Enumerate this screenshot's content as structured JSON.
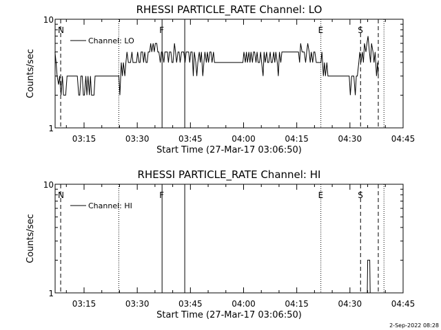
{
  "footer_date": "2-Sep-2022 08:28",
  "chart_data": [
    {
      "type": "line",
      "title": "RHESSI PARTICLE_RATE Channel: LO",
      "xlabel": "Start Time (27-Mar-17 03:06:50)",
      "ylabel": "Counts/sec",
      "y_scale": "log",
      "ylim": [
        1,
        10
      ],
      "y_ticks": [
        {
          "label": "10",
          "value": 10
        },
        {
          "label": "1",
          "value": 1
        }
      ],
      "xlim_min": [
        6.833,
        105.0
      ],
      "x_ticks": [
        {
          "label": "03:15",
          "min": 15
        },
        {
          "label": "03:30",
          "min": 30
        },
        {
          "label": "03:45",
          "min": 45
        },
        {
          "label": "04:00",
          "min": 60
        },
        {
          "label": "04:15",
          "min": 75
        },
        {
          "label": "04:30",
          "min": 90
        },
        {
          "label": "04:45",
          "min": 105
        }
      ],
      "legend": {
        "label": "Channel: LO",
        "position": "top-left"
      },
      "markers": [
        {
          "min": 8.4,
          "style": "dashed",
          "label": "N"
        },
        {
          "min": 24.8,
          "style": "dotted",
          "label": ""
        },
        {
          "min": 37.0,
          "style": "solid",
          "label": "F"
        },
        {
          "min": 43.4,
          "style": "solid",
          "label": ""
        },
        {
          "min": 81.8,
          "style": "dotted",
          "label": "E"
        },
        {
          "min": 93.0,
          "style": "dashed",
          "label": "S"
        },
        {
          "min": 98.0,
          "style": "dashed",
          "label": ""
        },
        {
          "min": 99.6,
          "style": "dotted",
          "label": ""
        }
      ],
      "series": [
        {
          "x": [
            6.8,
            7.1,
            7.4,
            7.8,
            8.1,
            8.5,
            8.9,
            9.2,
            9.5,
            9.8,
            10.2,
            10.5,
            10.8,
            11.1,
            11.5,
            11.8,
            12.1,
            12.5,
            12.8,
            13.1,
            13.5,
            13.8,
            14.1,
            14.5,
            14.8,
            15.1,
            15.5,
            15.8,
            16.1,
            16.5,
            16.8,
            17.1,
            17.5,
            17.8,
            18.1,
            18.5,
            18.8,
            19.1,
            19.5,
            19.8,
            20.1,
            20.5,
            20.8,
            21.1,
            21.5,
            21.8,
            22.1,
            22.5,
            22.8,
            23.1,
            23.5,
            23.8,
            24.1,
            24.5,
            24.8,
            25.1,
            25.5,
            25.8,
            26.1,
            26.5,
            26.8,
            27.1,
            27.5,
            27.8,
            28.1,
            28.5,
            28.8,
            29.1,
            29.5,
            29.8,
            30.1,
            30.5,
            30.8,
            31.1,
            31.5,
            31.8,
            32.1,
            32.5,
            32.8,
            33.1,
            33.5,
            33.8,
            34.1,
            34.5,
            34.8,
            35.1,
            35.5,
            35.8,
            36.1,
            36.5,
            36.8,
            37.1,
            37.5,
            37.8,
            38.1,
            38.5,
            38.8,
            39.1,
            39.5,
            39.8,
            40.1,
            40.5,
            40.8,
            41.1,
            41.5,
            41.8,
            42.1,
            42.5,
            42.8,
            43.1,
            43.5,
            43.8,
            44.1,
            44.5,
            44.8,
            45.1,
            45.5,
            45.8,
            46.1,
            46.5,
            46.8,
            47.1,
            47.5,
            47.8,
            48.1,
            48.5,
            48.8,
            49.1,
            49.5,
            49.8,
            50.1,
            50.5,
            50.8,
            51.1,
            51.5,
            51.8,
            52.1,
            52.5,
            52.8,
            53.1,
            53.5,
            53.8,
            54.1,
            54.5,
            54.8,
            55.1,
            55.5,
            55.8,
            56.1,
            56.5,
            56.8,
            57.1,
            57.5,
            57.8,
            58.1,
            58.5,
            58.8,
            59.1,
            59.5,
            59.8,
            60.1,
            60.5,
            60.8,
            61.1,
            61.5,
            61.8,
            62.1,
            62.5,
            62.8,
            63.1,
            63.5,
            63.8,
            64.1,
            64.5,
            64.8,
            65.1,
            65.5,
            65.8,
            66.1,
            66.5,
            66.8,
            67.1,
            67.5,
            67.8,
            68.1,
            68.5,
            68.8,
            69.1,
            69.5,
            69.8,
            70.1,
            70.5,
            70.8,
            71.1,
            71.5,
            71.8,
            72.1,
            72.5,
            72.8,
            73.1,
            73.5,
            73.8,
            74.1,
            74.5,
            74.8,
            75.1,
            75.5,
            75.8,
            76.1,
            76.5,
            76.8,
            77.1,
            77.5,
            77.8,
            78.1,
            78.5,
            78.8,
            79.1,
            79.5,
            79.8,
            80.1,
            80.5,
            80.8,
            81.1,
            81.5,
            81.8,
            82.1,
            82.5,
            82.8,
            83.1,
            83.5,
            83.8,
            84.1,
            84.5,
            84.8,
            85.1,
            85.5,
            85.8,
            86.1,
            86.5,
            86.8,
            87.1,
            87.5,
            87.8,
            88.1,
            88.5,
            88.8,
            89.1,
            89.5,
            89.8,
            90.1,
            90.5,
            90.8,
            91.1,
            91.5,
            91.8,
            92.1,
            92.5,
            92.8,
            93.1,
            93.5,
            93.8,
            94.1,
            94.5,
            94.8,
            95.1,
            95.5,
            95.8,
            96.1,
            96.5,
            96.8,
            97.1,
            97.5,
            97.8,
            98.0
          ],
          "y": [
            5,
            4,
            3,
            2.5,
            3,
            2,
            3,
            2,
            2,
            2,
            3,
            3,
            3,
            3,
            3,
            3,
            3,
            3,
            3,
            3,
            2,
            2,
            3,
            3,
            2,
            2,
            3,
            2,
            3,
            2,
            3,
            2,
            2,
            2,
            3,
            3,
            3,
            3,
            3,
            3,
            3,
            3,
            3,
            3,
            3,
            3,
            3,
            3,
            3,
            3,
            3,
            3,
            3,
            3,
            3,
            2,
            4,
            3,
            4,
            3,
            4,
            5,
            4,
            4,
            4,
            5,
            4,
            4,
            4,
            4,
            5,
            4,
            4,
            5,
            5,
            4,
            5,
            4,
            4,
            5,
            5,
            6,
            5,
            6,
            5,
            6,
            6,
            5,
            5,
            4,
            5,
            5,
            4,
            5,
            5,
            5,
            4,
            5,
            5,
            4,
            4,
            6,
            5,
            4,
            5,
            5,
            4,
            5,
            5,
            5,
            4,
            5,
            5,
            5,
            4,
            5,
            5,
            3,
            5,
            4,
            3,
            4,
            5,
            4,
            5,
            3,
            4,
            5,
            4,
            5,
            4,
            5,
            5,
            4,
            5,
            4,
            4,
            4,
            4,
            4,
            4,
            4,
            4,
            4,
            4,
            4,
            4,
            4,
            4,
            4,
            4,
            4,
            4,
            4,
            4,
            4,
            4,
            4,
            4,
            4,
            5,
            4,
            5,
            4,
            5,
            4,
            5,
            4,
            5,
            5,
            4,
            5,
            4,
            4,
            5,
            4,
            3,
            5,
            4,
            5,
            4,
            4,
            5,
            4,
            4,
            5,
            4,
            5,
            4,
            3,
            5,
            4,
            5,
            5,
            5,
            5,
            5,
            5,
            5,
            5,
            5,
            5,
            5,
            5,
            5,
            5,
            5,
            4,
            6,
            5,
            5,
            5,
            4,
            5,
            6,
            5,
            4,
            5,
            4,
            5,
            5,
            4,
            4,
            4,
            4,
            4,
            5,
            3,
            4,
            3,
            4,
            3,
            3,
            3,
            3,
            3,
            3,
            3,
            3,
            3,
            3,
            3,
            3,
            3,
            3,
            3,
            3,
            3,
            3,
            3,
            2,
            3,
            3,
            3,
            2,
            3,
            3,
            4,
            5,
            4,
            5,
            4,
            6,
            5,
            6,
            7,
            5,
            4,
            6,
            5,
            4,
            5,
            3,
            4,
            3
          ]
        }
      ]
    },
    {
      "type": "line",
      "title": "RHESSI PARTICLE_RATE Channel: HI",
      "xlabel": "Start Time (27-Mar-17 03:06:50)",
      "ylabel": "Counts/sec",
      "y_scale": "log",
      "ylim": [
        1,
        10
      ],
      "y_ticks": [
        {
          "label": "10",
          "value": 10
        },
        {
          "label": "1",
          "value": 1
        }
      ],
      "xlim_min": [
        6.833,
        105.0
      ],
      "x_ticks": [
        {
          "label": "03:15",
          "min": 15
        },
        {
          "label": "03:30",
          "min": 30
        },
        {
          "label": "03:45",
          "min": 45
        },
        {
          "label": "04:00",
          "min": 60
        },
        {
          "label": "04:15",
          "min": 75
        },
        {
          "label": "04:30",
          "min": 90
        },
        {
          "label": "04:45",
          "min": 105
        }
      ],
      "legend": {
        "label": "Channel: HI",
        "position": "top-left"
      },
      "markers": [
        {
          "min": 8.4,
          "style": "dashed",
          "label": "N"
        },
        {
          "min": 24.8,
          "style": "dotted",
          "label": ""
        },
        {
          "min": 37.0,
          "style": "solid",
          "label": "F"
        },
        {
          "min": 43.4,
          "style": "solid",
          "label": ""
        },
        {
          "min": 81.8,
          "style": "dotted",
          "label": "E"
        },
        {
          "min": 93.0,
          "style": "dashed",
          "label": "S"
        },
        {
          "min": 98.0,
          "style": "dashed",
          "label": ""
        },
        {
          "min": 99.6,
          "style": "dotted",
          "label": ""
        }
      ],
      "series": [
        {
          "x": [
            94.9,
            95.0,
            95.3,
            95.6,
            95.7
          ],
          "y": [
            1,
            2,
            2,
            2,
            1
          ]
        }
      ]
    }
  ]
}
